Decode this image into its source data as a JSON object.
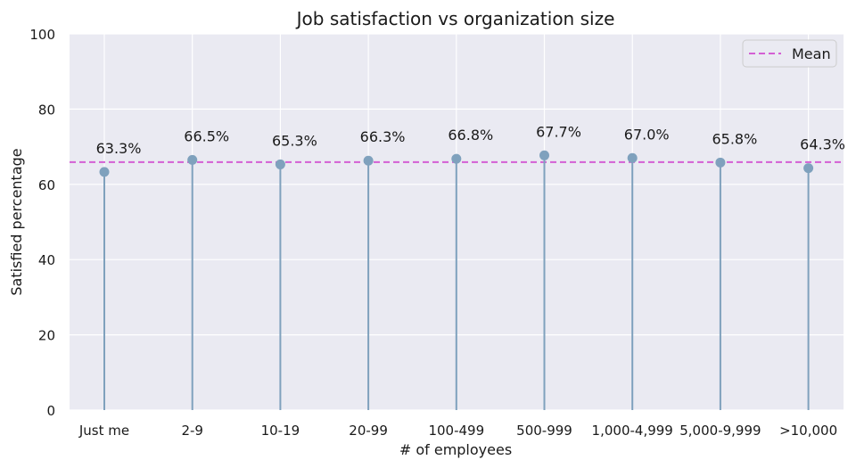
{
  "chart_data": {
    "type": "lollipop",
    "title": "Job satisfaction vs organization size",
    "xlabel": "# of employees",
    "ylabel": "Satisfied percentage",
    "categories": [
      "Just me",
      "2-9",
      "10-19",
      "20-99",
      "100-499",
      "500-999",
      "1,000-4,999",
      "5,000-9,999",
      ">10,000"
    ],
    "values": [
      63.3,
      66.5,
      65.3,
      66.3,
      66.8,
      67.7,
      67.0,
      65.8,
      64.3
    ],
    "value_labels": [
      "63.3%",
      "66.5%",
      "65.3%",
      "66.3%",
      "66.8%",
      "67.7%",
      "67.0%",
      "65.8%",
      "64.3%"
    ],
    "ylim": [
      0,
      100
    ],
    "yticks": [
      0,
      20,
      40,
      60,
      80,
      100
    ],
    "mean": 65.9,
    "legend": {
      "label": "Mean",
      "position": "top-right"
    },
    "grid": true,
    "colors": {
      "background": "#eaeaf2",
      "grid": "#ffffff",
      "stem": "#7fa1bd",
      "marker": "#7fa1bd",
      "mean_line": "#d45fd4"
    }
  }
}
